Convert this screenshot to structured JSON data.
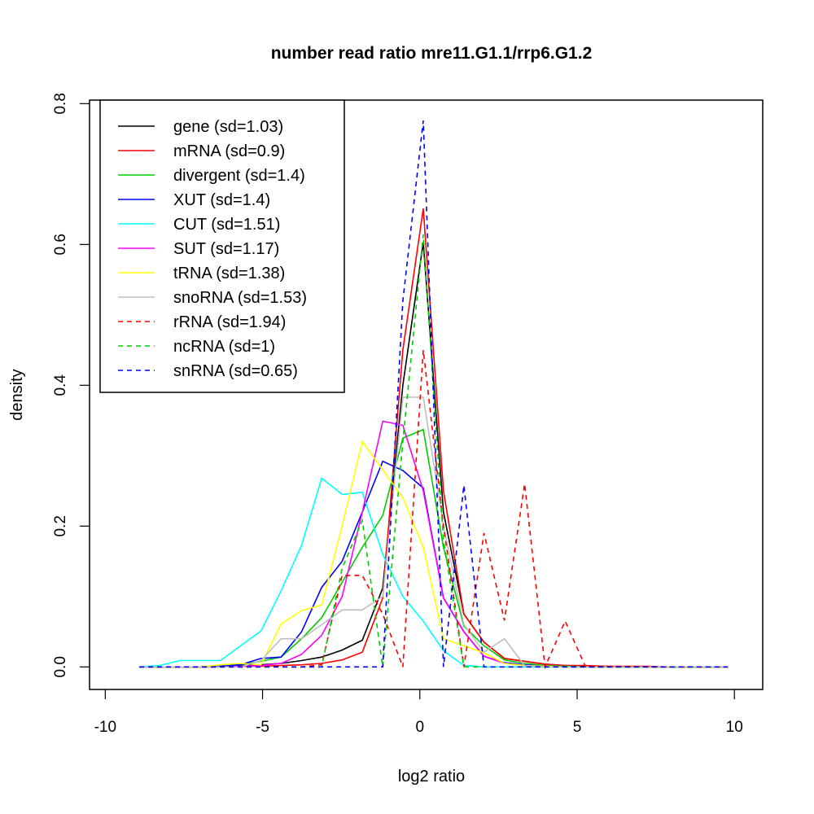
{
  "chart_data": {
    "type": "line",
    "title": "number read ratio mre11.G1.1/rrp6.G1.2",
    "xlabel": "log2 ratio",
    "ylabel": "density",
    "xlim": [
      -10.5,
      10.9
    ],
    "ylim": [
      -0.032,
      0.805
    ],
    "xticks": [
      -10,
      -5,
      0,
      5,
      10
    ],
    "xtick_labels": [
      "-10",
      "-5",
      "0",
      "5",
      "10"
    ],
    "yticks": [
      0.0,
      0.2,
      0.4,
      0.6,
      0.8
    ],
    "ytick_labels": [
      "0.0",
      "0.2",
      "0.4",
      "0.6",
      "0.8"
    ],
    "grid": false,
    "legend_position": "top-left",
    "x": [
      -8.92,
      -8.28,
      -7.63,
      -6.99,
      -6.34,
      -5.7,
      -5.05,
      -4.41,
      -3.76,
      -3.12,
      -2.47,
      -1.83,
      -1.18,
      -0.54,
      0.11,
      0.75,
      1.4,
      2.04,
      2.69,
      3.33,
      3.98,
      4.62,
      5.27,
      5.91,
      6.56,
      7.2,
      7.85,
      8.49,
      9.14,
      9.79
    ],
    "series": [
      {
        "name": "gene (sd=1.03)",
        "color": "#000000",
        "dash": false,
        "values": [
          0,
          0,
          0,
          0,
          0.001,
          0.002,
          0.003,
          0.005,
          0.009,
          0.014,
          0.024,
          0.038,
          0.112,
          0.4,
          0.603,
          0.22,
          0.075,
          0.035,
          0.012,
          0.008,
          0.004,
          0.002,
          0.001,
          0.001,
          0,
          0,
          0,
          0,
          0,
          0
        ]
      },
      {
        "name": "mRNA (sd=0.9)",
        "color": "#ff0000",
        "dash": false,
        "values": [
          0,
          0,
          0,
          0,
          0,
          0.001,
          0.001,
          0.002,
          0.003,
          0.005,
          0.01,
          0.021,
          0.098,
          0.45,
          0.651,
          0.25,
          0.075,
          0.035,
          0.012,
          0.008,
          0.004,
          0.002,
          0.002,
          0.001,
          0.001,
          0.001,
          0,
          0,
          0,
          0
        ]
      },
      {
        "name": "divergent (sd=1.4)",
        "color": "#00cd00",
        "dash": false,
        "values": [
          0,
          0,
          0,
          0,
          0.002,
          0.003,
          0.008,
          0.014,
          0.04,
          0.07,
          0.12,
          0.17,
          0.215,
          0.325,
          0.337,
          0.17,
          0.058,
          0.03,
          0.01,
          0.005,
          0.002,
          0.001,
          0,
          0,
          0,
          0,
          0,
          0,
          0,
          0
        ]
      },
      {
        "name": "XUT (sd=1.4)",
        "color": "#0000ff",
        "dash": false,
        "values": [
          0,
          0,
          0,
          0,
          0.001,
          0.003,
          0.012,
          0.014,
          0.05,
          0.113,
          0.15,
          0.22,
          0.292,
          0.279,
          0.254,
          0.098,
          0.05,
          0.015,
          0.006,
          0.003,
          0.001,
          0,
          0,
          0,
          0,
          0,
          0,
          0,
          0,
          0
        ]
      },
      {
        "name": "CUT (sd=1.51)",
        "color": "#00ffff",
        "dash": false,
        "values": [
          0,
          0.002,
          0.009,
          0.009,
          0.009,
          0.03,
          0.051,
          0.108,
          0.173,
          0.268,
          0.245,
          0.248,
          0.16,
          0.1,
          0.065,
          0.023,
          0.002,
          0,
          0,
          0,
          0,
          0,
          0,
          0,
          0,
          0,
          0,
          0,
          0,
          0
        ]
      },
      {
        "name": "SUT (sd=1.17)",
        "color": "#ff00ff",
        "dash": false,
        "values": [
          0,
          0,
          0,
          0,
          0,
          0.001,
          0.002,
          0.005,
          0.018,
          0.045,
          0.1,
          0.22,
          0.349,
          0.343,
          0.25,
          0.098,
          0.05,
          0.015,
          0.005,
          0.002,
          0.001,
          0,
          0,
          0,
          0,
          0,
          0,
          0,
          0,
          0
        ]
      },
      {
        "name": "tRNA (sd=1.38)",
        "color": "#ffff00",
        "dash": false,
        "values": [
          0,
          0,
          0,
          0,
          0.003,
          0.005,
          0.003,
          0.061,
          0.08,
          0.088,
          0.2,
          0.32,
          0.28,
          0.24,
          0.17,
          0.04,
          0.03,
          0.02,
          0.005,
          0.002,
          0.001,
          0,
          0,
          0,
          0,
          0,
          0,
          0,
          0,
          0
        ]
      },
      {
        "name": "snoRNA (sd=1.53)",
        "color": "#bebebe",
        "dash": false,
        "values": [
          0,
          0,
          0,
          0,
          0,
          0,
          0.009,
          0.04,
          0.04,
          0.06,
          0.081,
          0.081,
          0.1,
          0.383,
          0.383,
          0.2,
          0.06,
          0.021,
          0.04,
          0.002,
          0,
          0,
          0,
          0,
          0,
          0,
          0,
          0,
          0,
          0
        ]
      },
      {
        "name": "rRNA (sd=1.94)",
        "color": "#ff0000",
        "dash": true,
        "values": [
          0,
          0,
          0,
          0,
          0,
          0,
          0,
          0,
          0,
          0.003,
          0.13,
          0.13,
          0.075,
          0,
          0.45,
          0.2,
          0,
          0.19,
          0.066,
          0.26,
          0,
          0.065,
          0,
          0,
          0,
          0,
          0,
          0,
          0,
          0
        ]
      },
      {
        "name": "ncRNA (sd=1)",
        "color": "#00cd00",
        "dash": true,
        "values": [
          0,
          0,
          0,
          0,
          0,
          0,
          0,
          0,
          0,
          0,
          0.14,
          0.208,
          0,
          0.32,
          0.614,
          0.18,
          0,
          0,
          0,
          0,
          0,
          0,
          0,
          0,
          0,
          0,
          0,
          0,
          0,
          0
        ]
      },
      {
        "name": "snRNA (sd=0.65)",
        "color": "#0000ff",
        "dash": true,
        "values": [
          0,
          0,
          0,
          0,
          0,
          0,
          0,
          0,
          0,
          0,
          0,
          0,
          0,
          0.52,
          0.776,
          0,
          0.258,
          0,
          0,
          0,
          0,
          0,
          0,
          0,
          0,
          0,
          0,
          0,
          0,
          0
        ]
      }
    ]
  }
}
